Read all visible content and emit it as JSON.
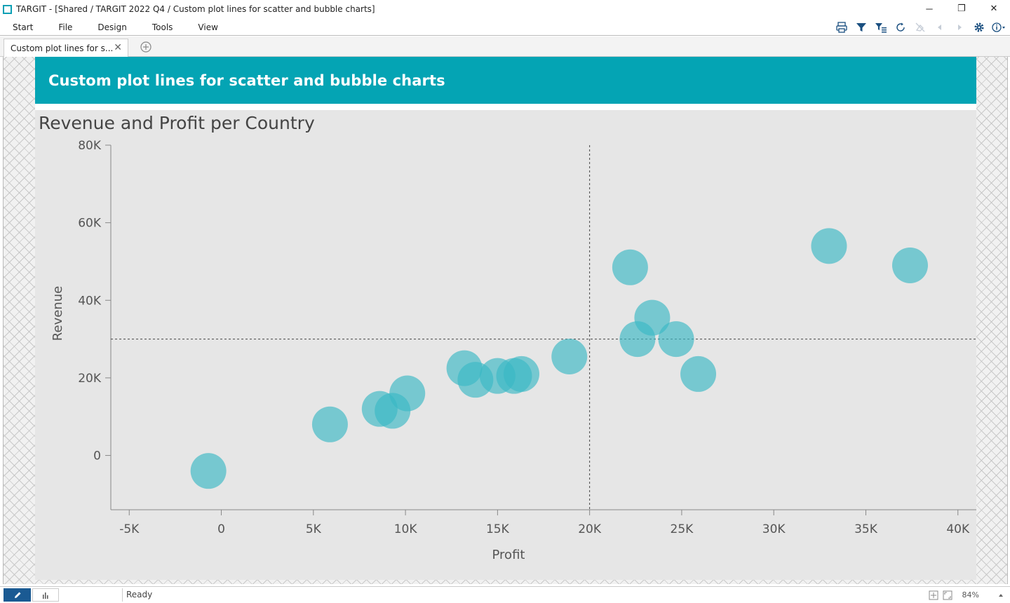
{
  "window": {
    "title": "TARGIT - [Shared / TARGIT 2022 Q4 / Custom plot lines for scatter and bubble charts]",
    "minimize": "─",
    "restore": "❐",
    "close": "✕"
  },
  "menu": {
    "items": [
      "Start",
      "File",
      "Design",
      "Tools",
      "View"
    ]
  },
  "toolbar": {
    "icons": [
      "print-icon",
      "filter-icon",
      "filter-list-icon",
      "refresh-icon",
      "clear-icon",
      "back-icon",
      "forward-icon",
      "settings-icon",
      "info-icon"
    ]
  },
  "tabs": {
    "active_label": "Custom plot lines for s...",
    "close_glyph": "✕",
    "add_glyph": "+"
  },
  "banner": {
    "title": "Custom plot lines for scatter and bubble charts"
  },
  "colors": {
    "banner": "#04a4b4",
    "bubble": "#3ab8c4",
    "plot_line": "#444444"
  },
  "chart_data": {
    "type": "scatter",
    "title": "Revenue and Profit per Country",
    "xlabel": "Profit",
    "ylabel": "Revenue",
    "xlim": [
      -6000,
      41000
    ],
    "ylim": [
      -14000,
      80000
    ],
    "x_ticks": [
      -5000,
      0,
      5000,
      10000,
      15000,
      20000,
      25000,
      30000,
      35000,
      40000
    ],
    "x_tick_labels": [
      "-5K",
      "0",
      "5K",
      "10K",
      "15K",
      "20K",
      "25K",
      "30K",
      "35K",
      "40K"
    ],
    "y_ticks": [
      0,
      20000,
      40000,
      60000,
      80000
    ],
    "y_tick_labels": [
      "0",
      "20K",
      "40K",
      "60K",
      "80K"
    ],
    "plot_lines": {
      "vertical_x": 20000,
      "horizontal_y": 30000
    },
    "grid": false,
    "points": [
      {
        "x": -700,
        "y": -4000
      },
      {
        "x": 5900,
        "y": 8000
      },
      {
        "x": 8600,
        "y": 12000
      },
      {
        "x": 9300,
        "y": 11500
      },
      {
        "x": 10100,
        "y": 16000
      },
      {
        "x": 13200,
        "y": 22500
      },
      {
        "x": 13800,
        "y": 19500
      },
      {
        "x": 15000,
        "y": 20500
      },
      {
        "x": 15900,
        "y": 20500
      },
      {
        "x": 16300,
        "y": 21000
      },
      {
        "x": 18900,
        "y": 25500
      },
      {
        "x": 22200,
        "y": 48500
      },
      {
        "x": 22600,
        "y": 30000
      },
      {
        "x": 23400,
        "y": 35500
      },
      {
        "x": 24700,
        "y": 30000
      },
      {
        "x": 25900,
        "y": 21000
      },
      {
        "x": 33000,
        "y": 54000
      },
      {
        "x": 37400,
        "y": 49000
      }
    ]
  },
  "statusbar": {
    "status": "Ready",
    "zoom": "84%"
  }
}
